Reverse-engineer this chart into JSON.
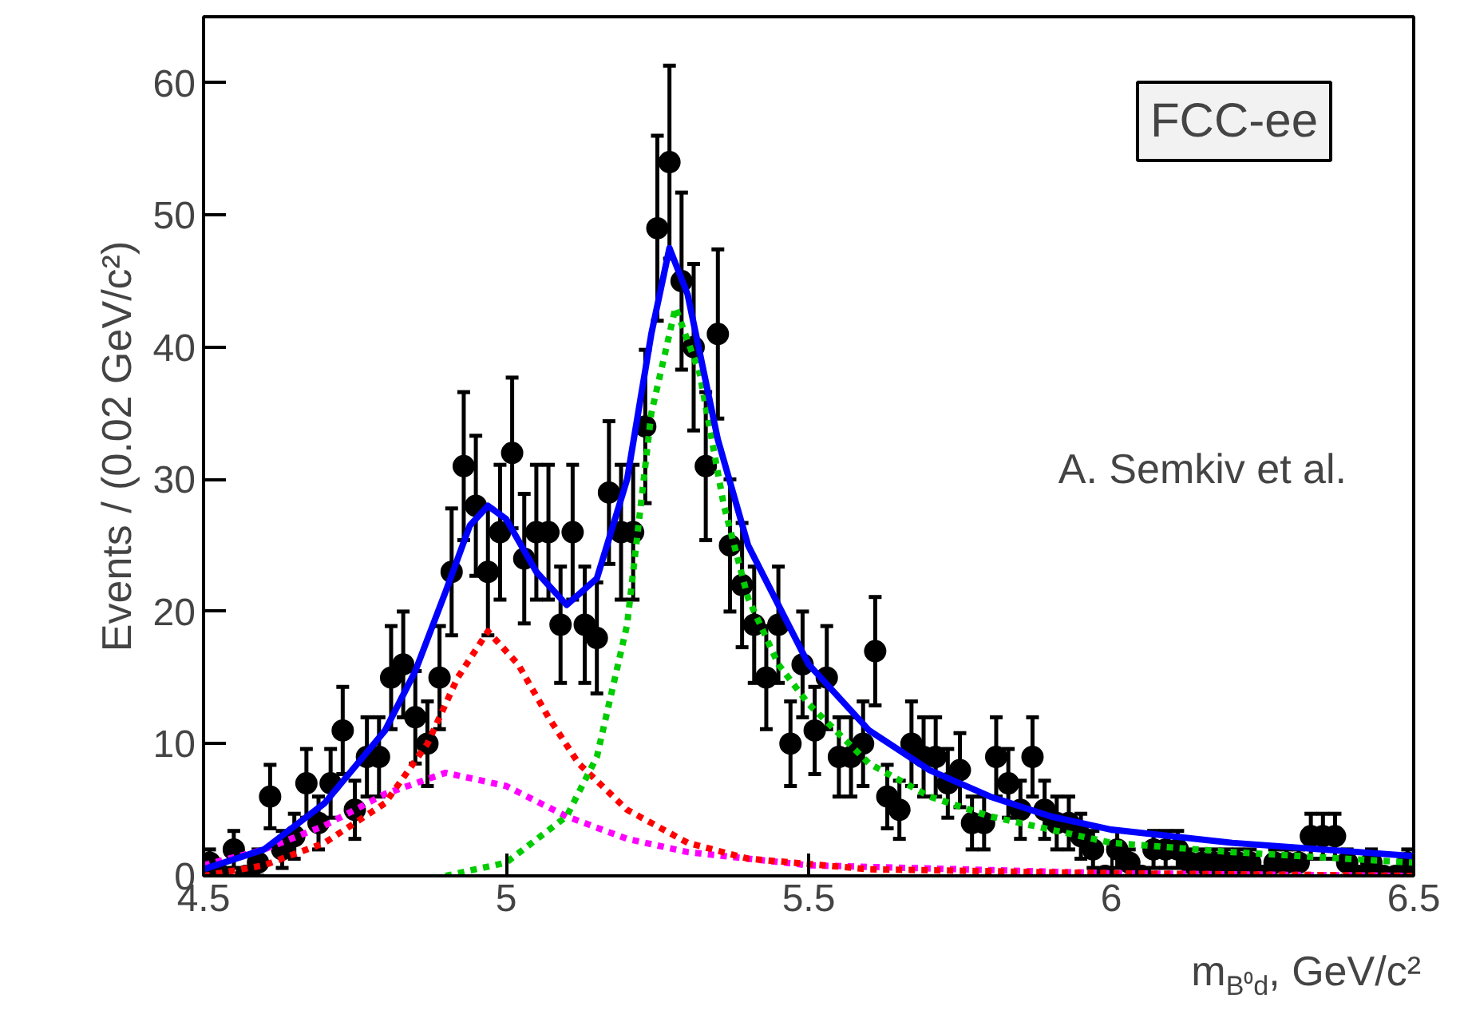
{
  "chart_data": {
    "type": "scatter",
    "xlabel": "m$_{B⁰d}$, GeV/c²",
    "ylabel": "Events / (0.02 GeV/c²)",
    "xlim": [
      4.5,
      6.5
    ],
    "ylim": [
      0,
      65
    ],
    "xticks": [
      4.5,
      5,
      5.5,
      6,
      6.5
    ],
    "yticks": [
      0,
      10,
      20,
      30,
      40,
      50,
      60
    ],
    "annotations": [
      "FCC-ee",
      "A. Semkiv et al."
    ],
    "x": [
      4.51,
      4.53,
      4.55,
      4.57,
      4.59,
      4.61,
      4.63,
      4.65,
      4.67,
      4.69,
      4.71,
      4.73,
      4.75,
      4.77,
      4.79,
      4.81,
      4.83,
      4.85,
      4.87,
      4.89,
      4.91,
      4.93,
      4.95,
      4.97,
      4.99,
      5.01,
      5.03,
      5.05,
      5.07,
      5.09,
      5.11,
      5.13,
      5.15,
      5.17,
      5.19,
      5.21,
      5.23,
      5.25,
      5.27,
      5.29,
      5.31,
      5.33,
      5.35,
      5.37,
      5.39,
      5.41,
      5.43,
      5.45,
      5.47,
      5.49,
      5.51,
      5.53,
      5.55,
      5.57,
      5.59,
      5.61,
      5.63,
      5.65,
      5.67,
      5.69,
      5.71,
      5.73,
      5.75,
      5.77,
      5.79,
      5.81,
      5.83,
      5.85,
      5.87,
      5.89,
      5.91,
      5.93,
      5.95,
      5.97,
      5.99,
      6.01,
      6.03,
      6.05,
      6.07,
      6.09,
      6.11,
      6.13,
      6.15,
      6.17,
      6.19,
      6.21,
      6.23,
      6.25,
      6.27,
      6.29,
      6.31,
      6.33,
      6.35,
      6.37,
      6.39,
      6.41,
      6.43,
      6.45,
      6.47,
      6.49
    ],
    "series": [
      {
        "type": "scatter",
        "marker": "circle",
        "color": "#000000",
        "values": [
          1,
          0,
          2,
          0,
          1,
          6,
          2,
          3,
          7,
          4,
          7,
          11,
          5,
          9,
          9,
          15,
          16,
          12,
          10,
          15,
          23,
          31,
          28,
          23,
          26,
          32,
          24,
          26,
          26,
          19,
          26,
          19,
          18,
          29,
          26,
          26,
          34,
          49,
          54,
          45,
          40,
          31,
          41,
          25,
          22,
          19,
          15,
          19,
          10,
          16,
          11,
          15,
          9,
          9,
          10,
          17,
          6,
          5,
          10,
          9,
          9,
          7,
          8,
          4,
          4,
          9,
          7,
          5,
          9,
          5,
          4,
          4,
          3,
          2,
          0,
          2,
          1,
          0,
          2,
          2,
          2,
          1,
          1,
          1,
          1,
          1,
          1,
          0,
          1,
          1,
          1,
          3,
          3,
          3,
          1,
          0,
          1,
          0,
          0,
          1
        ],
        "errors": [
          1,
          null,
          1.4,
          null,
          1,
          2.4,
          1.4,
          1.7,
          2.6,
          2,
          2.6,
          3.3,
          2.2,
          3,
          3,
          3.9,
          4,
          3.5,
          3.2,
          3.9,
          4.8,
          5.6,
          5.3,
          4.8,
          5.1,
          5.7,
          4.9,
          5.1,
          5.1,
          4.4,
          5.1,
          4.4,
          4.2,
          5.4,
          5.1,
          5.1,
          5.8,
          7,
          7.3,
          6.7,
          6.3,
          5.6,
          6.4,
          5,
          4.7,
          4.4,
          3.9,
          4.4,
          3.2,
          4,
          3.3,
          3.9,
          3,
          3,
          3.2,
          4.1,
          2.4,
          2.2,
          3.2,
          3,
          3,
          2.6,
          2.8,
          2,
          2,
          3,
          2.6,
          2.2,
          3,
          2.2,
          2,
          2,
          1.7,
          1.4,
          null,
          1.4,
          1,
          null,
          1.4,
          1.4,
          1.4,
          1,
          1,
          1,
          1,
          1,
          1,
          null,
          1,
          1,
          1,
          1.7,
          1.7,
          1.7,
          1,
          null,
          1,
          null,
          null,
          1
        ]
      },
      {
        "type": "line",
        "line_style": "dotted",
        "color": "#ff00ff",
        "x": [
          4.5,
          4.6,
          4.7,
          4.8,
          4.9,
          5.0,
          5.1,
          5.2,
          5.3,
          5.5,
          6.0,
          6.5
        ],
        "values": [
          0.8,
          2,
          3.8,
          6.2,
          7.8,
          6.8,
          4.5,
          2.8,
          1.8,
          0.8,
          0.2,
          0
        ]
      },
      {
        "type": "line",
        "line_style": "dotted",
        "color": "#ff0000",
        "x": [
          4.5,
          4.6,
          4.7,
          4.8,
          4.87,
          4.92,
          4.97,
          5.02,
          5.07,
          5.12,
          5.2,
          5.3,
          5.4,
          5.6,
          6.0,
          6.5
        ],
        "values": [
          0,
          0.8,
          2.5,
          5.5,
          10,
          15,
          18.5,
          16,
          12,
          8.5,
          5,
          2.5,
          1.3,
          0.5,
          0.2,
          0
        ]
      },
      {
        "type": "line",
        "line_style": "dotted",
        "color": "#00cc00",
        "x": [
          4.9,
          5.0,
          5.1,
          5.15,
          5.2,
          5.24,
          5.28,
          5.32,
          5.36,
          5.4,
          5.45,
          5.5,
          5.6,
          5.7,
          5.8,
          5.9,
          6.0,
          6.2,
          6.5
        ],
        "values": [
          0,
          1,
          4.5,
          9,
          19,
          35,
          43,
          38,
          28,
          21,
          16,
          13,
          8.5,
          6,
          4.5,
          3.5,
          2.5,
          1.8,
          1.0
        ]
      },
      {
        "type": "line",
        "line_style": "solid",
        "color": "#0000ff",
        "x": [
          4.5,
          4.6,
          4.7,
          4.8,
          4.85,
          4.9,
          4.94,
          4.97,
          5.0,
          5.05,
          5.1,
          5.15,
          5.2,
          5.24,
          5.27,
          5.3,
          5.35,
          5.4,
          5.5,
          5.6,
          5.7,
          5.8,
          5.9,
          6.0,
          6.2,
          6.5
        ],
        "values": [
          0.5,
          2,
          5.5,
          11,
          15.5,
          21.5,
          26.5,
          28,
          27,
          23,
          20.5,
          22.5,
          30,
          41,
          47.5,
          44,
          33,
          25,
          16,
          11,
          8,
          6,
          4.5,
          3.5,
          2.5,
          1.5
        ]
      }
    ]
  }
}
